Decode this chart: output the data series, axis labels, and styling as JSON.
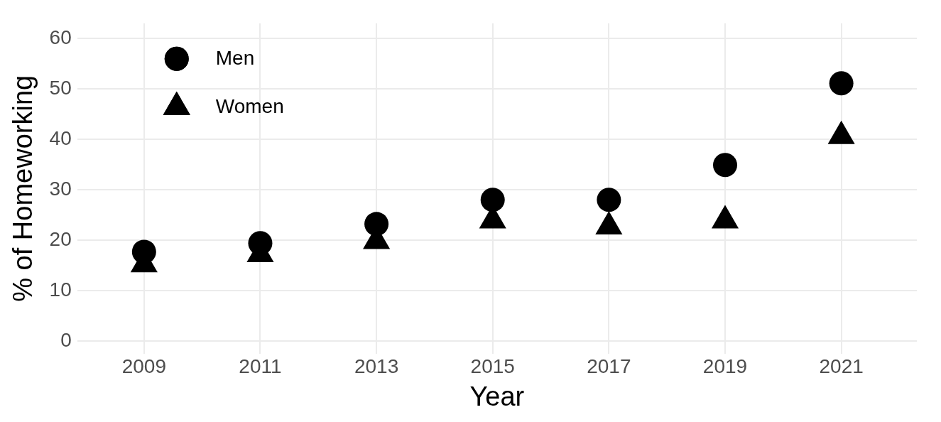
{
  "chart_data": {
    "type": "scatter",
    "xlabel": "Year",
    "ylabel": "% of Homeworking",
    "x": [
      2009,
      2011,
      2013,
      2015,
      2017,
      2019,
      2021
    ],
    "series": [
      {
        "name": "Men",
        "color": "#000000",
        "marker": "circle",
        "values": [
          17.7,
          19.4,
          23.2,
          28.0,
          28.0,
          34.9,
          51.1
        ]
      },
      {
        "name": "Women",
        "color": "#000000",
        "marker": "triangle",
        "values": [
          15.2,
          17.2,
          19.8,
          23.9,
          22.7,
          23.9,
          40.6
        ]
      }
    ],
    "xlim": [
      2007.85,
      2022.3
    ],
    "xticks": [
      2009,
      2011,
      2013,
      2015,
      2017,
      2019,
      2021
    ],
    "ylim": [
      -2.5,
      63
    ],
    "yticks": [
      0,
      10,
      20,
      30,
      40,
      50,
      60
    ],
    "grid": true,
    "legend": "top left"
  }
}
